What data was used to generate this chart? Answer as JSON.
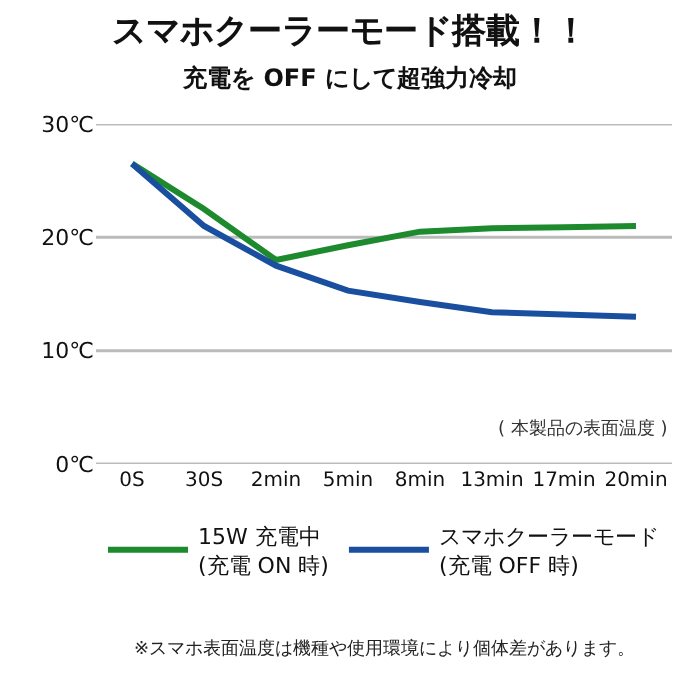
{
  "chart_data": {
    "type": "line",
    "title": "スマホクーラーモード搭載！！",
    "subtitle": "充電を OFF にして超強力冷却",
    "categories": [
      "0S",
      "30S",
      "2min",
      "5min",
      "8min",
      "13min",
      "17min",
      "20min"
    ],
    "series": [
      {
        "name": "15W 充電中\n(充電 ON 時)",
        "color": "#1e8a2e",
        "values": [
          26.5,
          22.5,
          18,
          19.3,
          20.5,
          20.8,
          20.9,
          21
        ]
      },
      {
        "name": "スマホクーラーモード\n(充電 OFF 時)",
        "color": "#1a4fa0",
        "values": [
          26.5,
          21,
          17.5,
          15.3,
          14.3,
          13.4,
          13.2,
          13
        ]
      }
    ],
    "yticks": [
      {
        "value": 0,
        "label": "0℃"
      },
      {
        "value": 10,
        "label": "10℃"
      },
      {
        "value": 20,
        "label": "20℃"
      },
      {
        "value": 30,
        "label": "30℃"
      }
    ],
    "grid": "y",
    "legend": "bottom",
    "marker": "none",
    "line_style": "solid",
    "ylim": [
      0,
      30
    ],
    "annotations": [
      "( 本製品の表面温度 )",
      "※スマホ表面温度は機種や使用環境により個体差があります。"
    ]
  }
}
